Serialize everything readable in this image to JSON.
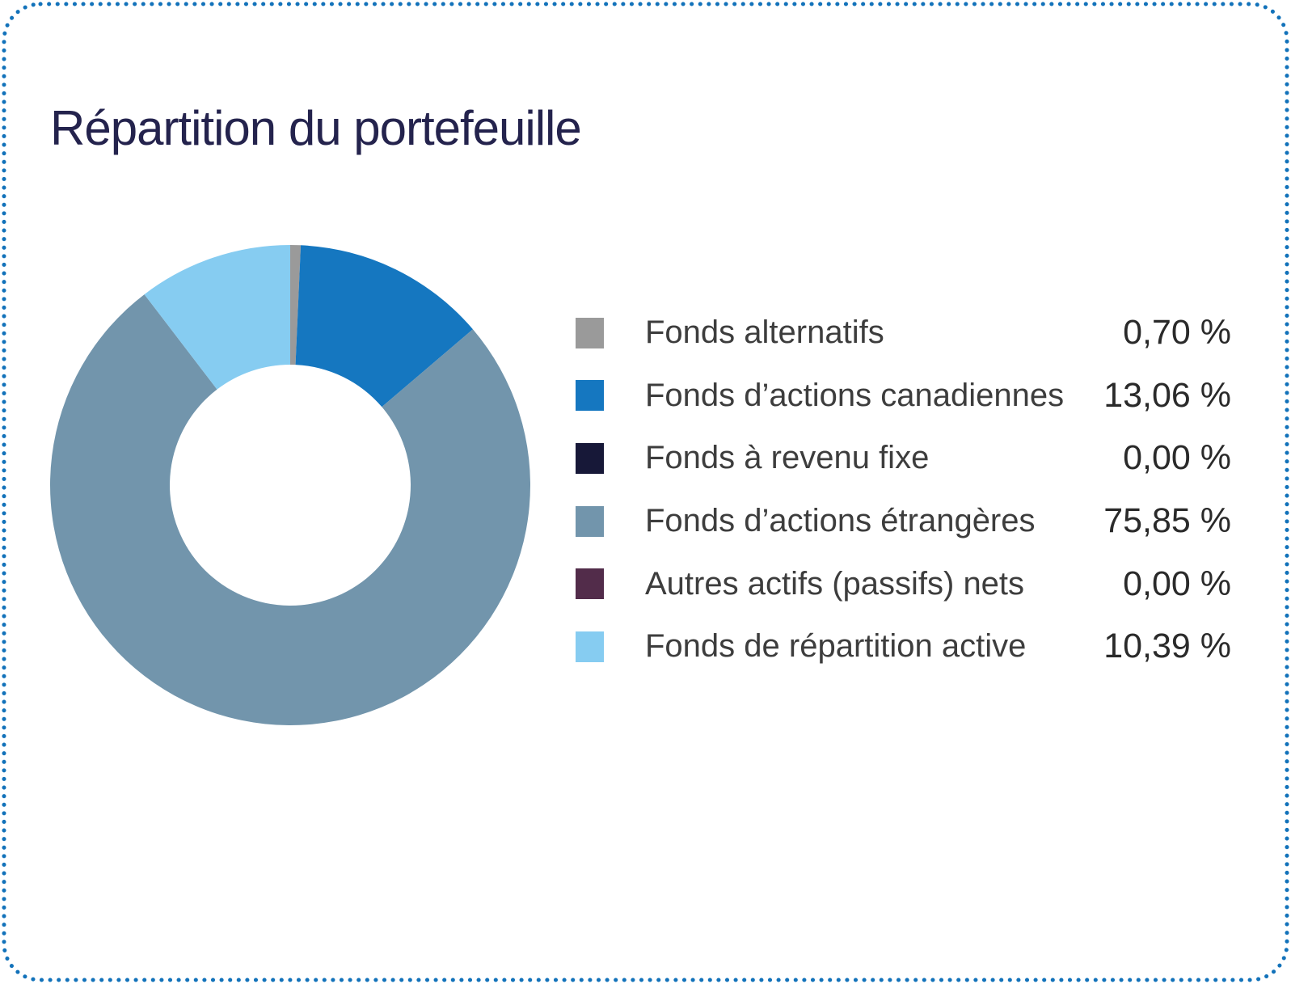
{
  "card": {
    "title": "Répartition du portefeuille",
    "background": "#ffffff",
    "border_color": "#1272ba",
    "border_style": "dotted"
  },
  "chart_data": {
    "type": "pie",
    "subtype": "donut",
    "title": "Répartition du portefeuille",
    "start_angle": "top",
    "direction": "clockwise",
    "inner_radius_ratio": 0.5,
    "legend_position": "right",
    "unit": "%",
    "categories": [
      "Fonds alternatifs",
      "Fonds d’actions canadiennes",
      "Fonds à revenu fixe",
      "Fonds d’actions étrangères",
      "Autres actifs (passifs) nets",
      "Fonds de répartition active"
    ],
    "values": [
      0.7,
      13.06,
      0.0,
      75.85,
      0.0,
      10.39
    ],
    "value_labels": [
      "0,70 %",
      "13,06 %",
      "0,00 %",
      "75,85 %",
      "0,00 %",
      "10,39 %"
    ],
    "colors": [
      "#9a9a9a",
      "#1577c0",
      "#171838",
      "#7295ac",
      "#522c4a",
      "#86ccf1"
    ]
  }
}
